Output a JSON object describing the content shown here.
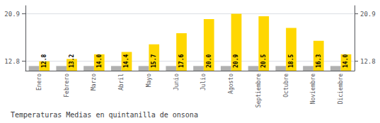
{
  "chart_data": {
    "type": "bar",
    "title": "Temperaturas Medias en quintanilla de onsona",
    "categories": [
      "Enero",
      "Febrero",
      "Marzo",
      "Abril",
      "Mayo",
      "Junio",
      "Julio",
      "Agosto",
      "Septiembre",
      "Octubre",
      "Noviembre",
      "Diciembre"
    ],
    "series": [
      {
        "color": "#B0B0B0",
        "values": [
          12.0,
          12.0,
          12.0,
          12.0,
          12.0,
          12.0,
          12.0,
          12.0,
          12.0,
          12.0,
          12.0,
          12.0
        ]
      },
      {
        "color": "#FFD700",
        "values": [
          12.8,
          13.2,
          14.0,
          14.4,
          15.7,
          17.6,
          20.0,
          20.9,
          20.5,
          18.5,
          16.3,
          14.0
        ],
        "value_labels": [
          "12.8",
          "13.2",
          "14.0",
          "14.4",
          "15.7",
          "17.6",
          "20.0",
          "20.9",
          "20.5",
          "18.5",
          "16.3",
          "14.0"
        ],
        "data_labels": true
      }
    ],
    "ylim": [
      11.2,
      22.3
    ],
    "yticks": [
      12.8,
      20.9
    ],
    "y2lim": [
      11.2,
      22.3
    ],
    "y2ticks": [
      12.8,
      20.9
    ],
    "grid": true
  }
}
